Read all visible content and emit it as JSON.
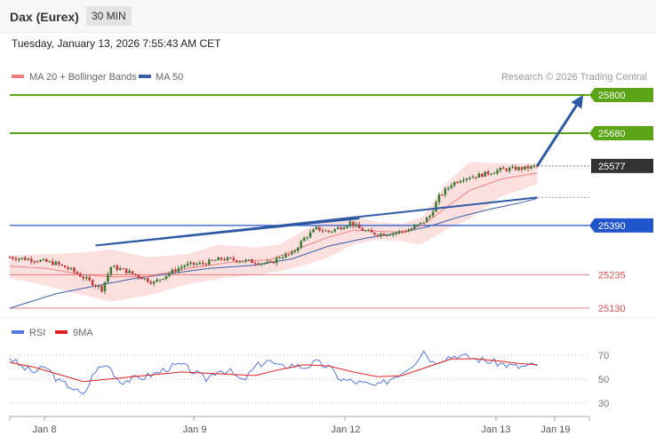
{
  "header": {
    "title": "Dax (Eurex)",
    "interval": "30 MIN"
  },
  "datetime": "Tuesday, January 13, 2026 7:55:43 AM CET",
  "legend": {
    "ma20": "MA 20 + Bollinger Bands",
    "ma50": "MA 50",
    "credit": "Research © 2026 Trading Central",
    "rsi": "RSI",
    "rsi_ma": "9MA"
  },
  "colors": {
    "green": "#5aa415",
    "blue": "#2255cc",
    "red": "#e05050",
    "dark": "#333333",
    "arrow": "#2e5aa5",
    "ma20": "#f08080",
    "ma50": "#3a5fa8",
    "band": "#fcdada",
    "candle_up": "#3d7a35",
    "candle_down": "#c53a3a",
    "rsi": "#5577dd",
    "rsi_ma": "#e02020"
  },
  "chart_data": [
    {
      "type": "candlestick",
      "title": "Dax (Eurex)",
      "timeframe": "30 MIN",
      "x_ticks": [
        "Jan 8",
        "Jan 9",
        "Jan 12",
        "Jan 13",
        "Jan 19"
      ],
      "ylim": [
        25125,
        25810
      ],
      "levels": [
        {
          "value": 25800,
          "label": "25800",
          "kind": "resistance",
          "color": "#5aa415"
        },
        {
          "value": 25680,
          "label": "25680",
          "kind": "resistance",
          "color": "#5aa415"
        },
        {
          "value": 25577,
          "label": "25577",
          "kind": "last_price",
          "color": "#333333"
        },
        {
          "value": 25390,
          "label": "25390",
          "kind": "pivot",
          "color": "#2255cc"
        },
        {
          "value": 25235,
          "label": "25235",
          "kind": "support",
          "color": "#e05050"
        },
        {
          "value": 25130,
          "label": "25130",
          "kind": "support",
          "color": "#e05050"
        }
      ],
      "price_path": [
        [
          0,
          25290
        ],
        [
          8,
          25282
        ],
        [
          15,
          25270
        ],
        [
          20,
          25250
        ],
        [
          26,
          25215
        ],
        [
          30,
          25190
        ],
        [
          33,
          25260
        ],
        [
          37,
          25250
        ],
        [
          42,
          25230
        ],
        [
          47,
          25210
        ],
        [
          52,
          25240
        ],
        [
          57,
          25265
        ],
        [
          63,
          25270
        ],
        [
          69,
          25285
        ],
        [
          75,
          25280
        ],
        [
          80,
          25275
        ],
        [
          85,
          25270
        ],
        [
          88,
          25292
        ],
        [
          92,
          25300
        ],
        [
          96,
          25350
        ],
        [
          100,
          25380
        ],
        [
          104,
          25370
        ],
        [
          108,
          25385
        ],
        [
          111,
          25400
        ],
        [
          114,
          25380
        ],
        [
          118,
          25365
        ],
        [
          122,
          25363
        ],
        [
          126,
          25368
        ],
        [
          130,
          25375
        ],
        [
          134,
          25395
        ],
        [
          137,
          25420
        ],
        [
          140,
          25480
        ],
        [
          144,
          25520
        ],
        [
          148,
          25540
        ],
        [
          152,
          25545
        ],
        [
          156,
          25555
        ],
        [
          160,
          25565
        ],
        [
          164,
          25568
        ],
        [
          168,
          25570
        ],
        [
          172,
          25577
        ]
      ],
      "ma20": [
        [
          0,
          25262
        ],
        [
          12,
          25255
        ],
        [
          24,
          25235
        ],
        [
          33,
          25228
        ],
        [
          45,
          25230
        ],
        [
          58,
          25255
        ],
        [
          75,
          25278
        ],
        [
          85,
          25282
        ],
        [
          95,
          25320
        ],
        [
          103,
          25350
        ],
        [
          112,
          25375
        ],
        [
          120,
          25372
        ],
        [
          128,
          25368
        ],
        [
          135,
          25392
        ],
        [
          142,
          25445
        ],
        [
          150,
          25500
        ],
        [
          160,
          25535
        ],
        [
          172,
          25555
        ]
      ],
      "ma50": [
        [
          0,
          25130
        ],
        [
          15,
          25175
        ],
        [
          28,
          25200
        ],
        [
          40,
          25222
        ],
        [
          52,
          25238
        ],
        [
          65,
          25255
        ],
        [
          80,
          25265
        ],
        [
          92,
          25285
        ],
        [
          104,
          25325
        ],
        [
          116,
          25350
        ],
        [
          126,
          25365
        ],
        [
          136,
          25385
        ],
        [
          146,
          25415
        ],
        [
          156,
          25440
        ],
        [
          166,
          25460
        ],
        [
          172,
          25475
        ]
      ],
      "bollinger": {
        "upper": [
          [
            0,
            25295
          ],
          [
            12,
            25300
          ],
          [
            24,
            25305
          ],
          [
            33,
            25315
          ],
          [
            45,
            25290
          ],
          [
            58,
            25300
          ],
          [
            68,
            25330
          ],
          [
            80,
            25320
          ],
          [
            88,
            25330
          ],
          [
            96,
            25375
          ],
          [
            104,
            25410
          ],
          [
            112,
            25420
          ],
          [
            120,
            25400
          ],
          [
            128,
            25395
          ],
          [
            135,
            25420
          ],
          [
            142,
            25520
          ],
          [
            150,
            25590
          ],
          [
            160,
            25585
          ],
          [
            172,
            25585
          ]
        ],
        "lower": [
          [
            0,
            25225
          ],
          [
            12,
            25200
          ],
          [
            24,
            25170
          ],
          [
            33,
            25150
          ],
          [
            45,
            25170
          ],
          [
            58,
            25205
          ],
          [
            70,
            25225
          ],
          [
            80,
            25235
          ],
          [
            88,
            25245
          ],
          [
            96,
            25265
          ],
          [
            104,
            25290
          ],
          [
            112,
            25330
          ],
          [
            120,
            25345
          ],
          [
            128,
            25340
          ],
          [
            134,
            25330
          ],
          [
            142,
            25375
          ],
          [
            150,
            25410
          ],
          [
            160,
            25480
          ],
          [
            172,
            25520
          ]
        ]
      },
      "trendlines": [
        {
          "from": [
            28,
            25327
          ],
          "to": [
            172,
            25478
          ]
        },
        {
          "from": [
            28,
            25327
          ],
          "to": [
            114,
            25412
          ]
        }
      ],
      "arrow": {
        "from": [
          172,
          25577
        ],
        "to": [
          187,
          25800
        ]
      }
    },
    {
      "type": "line",
      "title": "RSI",
      "y_ticks": [
        70,
        50,
        30
      ],
      "ylim": [
        25,
        80
      ],
      "series": [
        {
          "name": "RSI",
          "values": [
            [
              0,
              68
            ],
            [
              4,
              60
            ],
            [
              8,
              56
            ],
            [
              12,
              60
            ],
            [
              16,
              48
            ],
            [
              20,
              44
            ],
            [
              24,
              36
            ],
            [
              28,
              58
            ],
            [
              32,
              62
            ],
            [
              36,
              48
            ],
            [
              40,
              50
            ],
            [
              44,
              52
            ],
            [
              48,
              55
            ],
            [
              52,
              60
            ],
            [
              56,
              62
            ],
            [
              60,
              56
            ],
            [
              64,
              50
            ],
            [
              68,
              58
            ],
            [
              72,
              56
            ],
            [
              76,
              48
            ],
            [
              80,
              60
            ],
            [
              84,
              66
            ],
            [
              88,
              60
            ],
            [
              92,
              62
            ],
            [
              96,
              60
            ],
            [
              100,
              64
            ],
            [
              104,
              60
            ],
            [
              108,
              50
            ],
            [
              112,
              48
            ],
            [
              116,
              46
            ],
            [
              120,
              44
            ],
            [
              124,
              50
            ],
            [
              128,
              56
            ],
            [
              132,
              64
            ],
            [
              135,
              74
            ],
            [
              138,
              64
            ],
            [
              142,
              68
            ],
            [
              146,
              70
            ],
            [
              150,
              68
            ],
            [
              154,
              66
            ],
            [
              158,
              64
            ],
            [
              162,
              62
            ],
            [
              166,
              60
            ],
            [
              172,
              62
            ]
          ]
        },
        {
          "name": "9MA",
          "values": [
            [
              0,
              64
            ],
            [
              8,
              60
            ],
            [
              16,
              54
            ],
            [
              24,
              48
            ],
            [
              32,
              50
            ],
            [
              40,
              52
            ],
            [
              48,
              54
            ],
            [
              56,
              56
            ],
            [
              64,
              55
            ],
            [
              72,
              54
            ],
            [
              80,
              53
            ],
            [
              88,
              58
            ],
            [
              96,
              62
            ],
            [
              104,
              61
            ],
            [
              112,
              56
            ],
            [
              120,
              52
            ],
            [
              128,
              53
            ],
            [
              136,
              60
            ],
            [
              144,
              67
            ],
            [
              152,
              67
            ],
            [
              160,
              65
            ],
            [
              166,
              63
            ],
            [
              172,
              62
            ]
          ]
        }
      ]
    }
  ]
}
